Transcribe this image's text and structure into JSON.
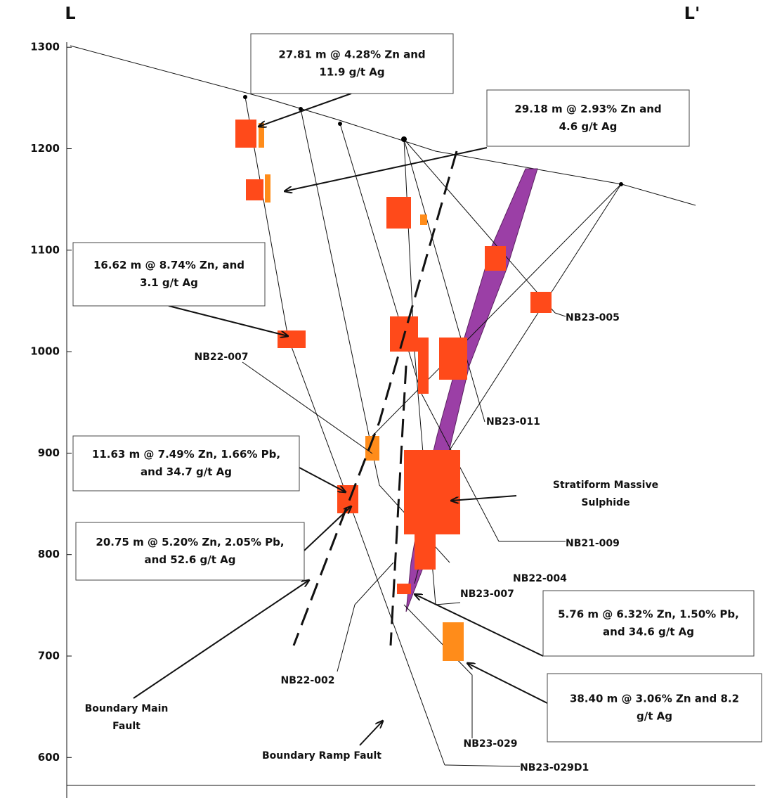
{
  "section": {
    "left": "L",
    "right": "L'"
  },
  "elevation_axis": {
    "range": [
      560,
      1305
    ],
    "ticks": [
      1300,
      1200,
      1100,
      1000,
      900,
      800,
      700,
      600
    ]
  },
  "callouts": [
    {
      "lines": [
        "27.81 m @ 4.28% Zn and",
        "11.9 g/t Ag"
      ]
    },
    {
      "lines": [
        "29.18 m @ 2.93% Zn and",
        "4.6 g/t Ag"
      ]
    },
    {
      "lines": [
        "16.62 m @ 8.74% Zn, and",
        "3.1 g/t Ag"
      ]
    },
    {
      "lines": [
        "11.63 m @ 7.49% Zn, 1.66% Pb,",
        "and 34.7 g/t Ag"
      ]
    },
    {
      "lines": [
        "20.75 m @ 5.20% Zn, 2.05% Pb,",
        "and 52.6 g/t Ag"
      ]
    },
    {
      "lines": [
        "5.76 m @ 6.32% Zn, 1.50% Pb,",
        "and 34.6 g/t Ag"
      ]
    },
    {
      "lines": [
        "38.40 m @ 3.06% Zn and 8.2",
        "g/t Ag"
      ]
    }
  ],
  "labels": [
    {
      "lines": [
        "NB22-007"
      ]
    },
    {
      "lines": [
        "NB23-005"
      ]
    },
    {
      "lines": [
        "NB23-011"
      ]
    },
    {
      "lines": [
        "Stratiform Massive",
        "Sulphide"
      ]
    },
    {
      "lines": [
        "NB21-009"
      ]
    },
    {
      "lines": [
        "NB22-004"
      ]
    },
    {
      "lines": [
        "NB23-007"
      ]
    },
    {
      "lines": [
        "NB22-002"
      ]
    },
    {
      "lines": [
        "Boundary Main",
        "Fault"
      ]
    },
    {
      "lines": [
        "Boundary Ramp Fault"
      ]
    },
    {
      "lines": [
        "NB23-029"
      ]
    },
    {
      "lines": [
        "NB23-029D1"
      ]
    }
  ]
}
